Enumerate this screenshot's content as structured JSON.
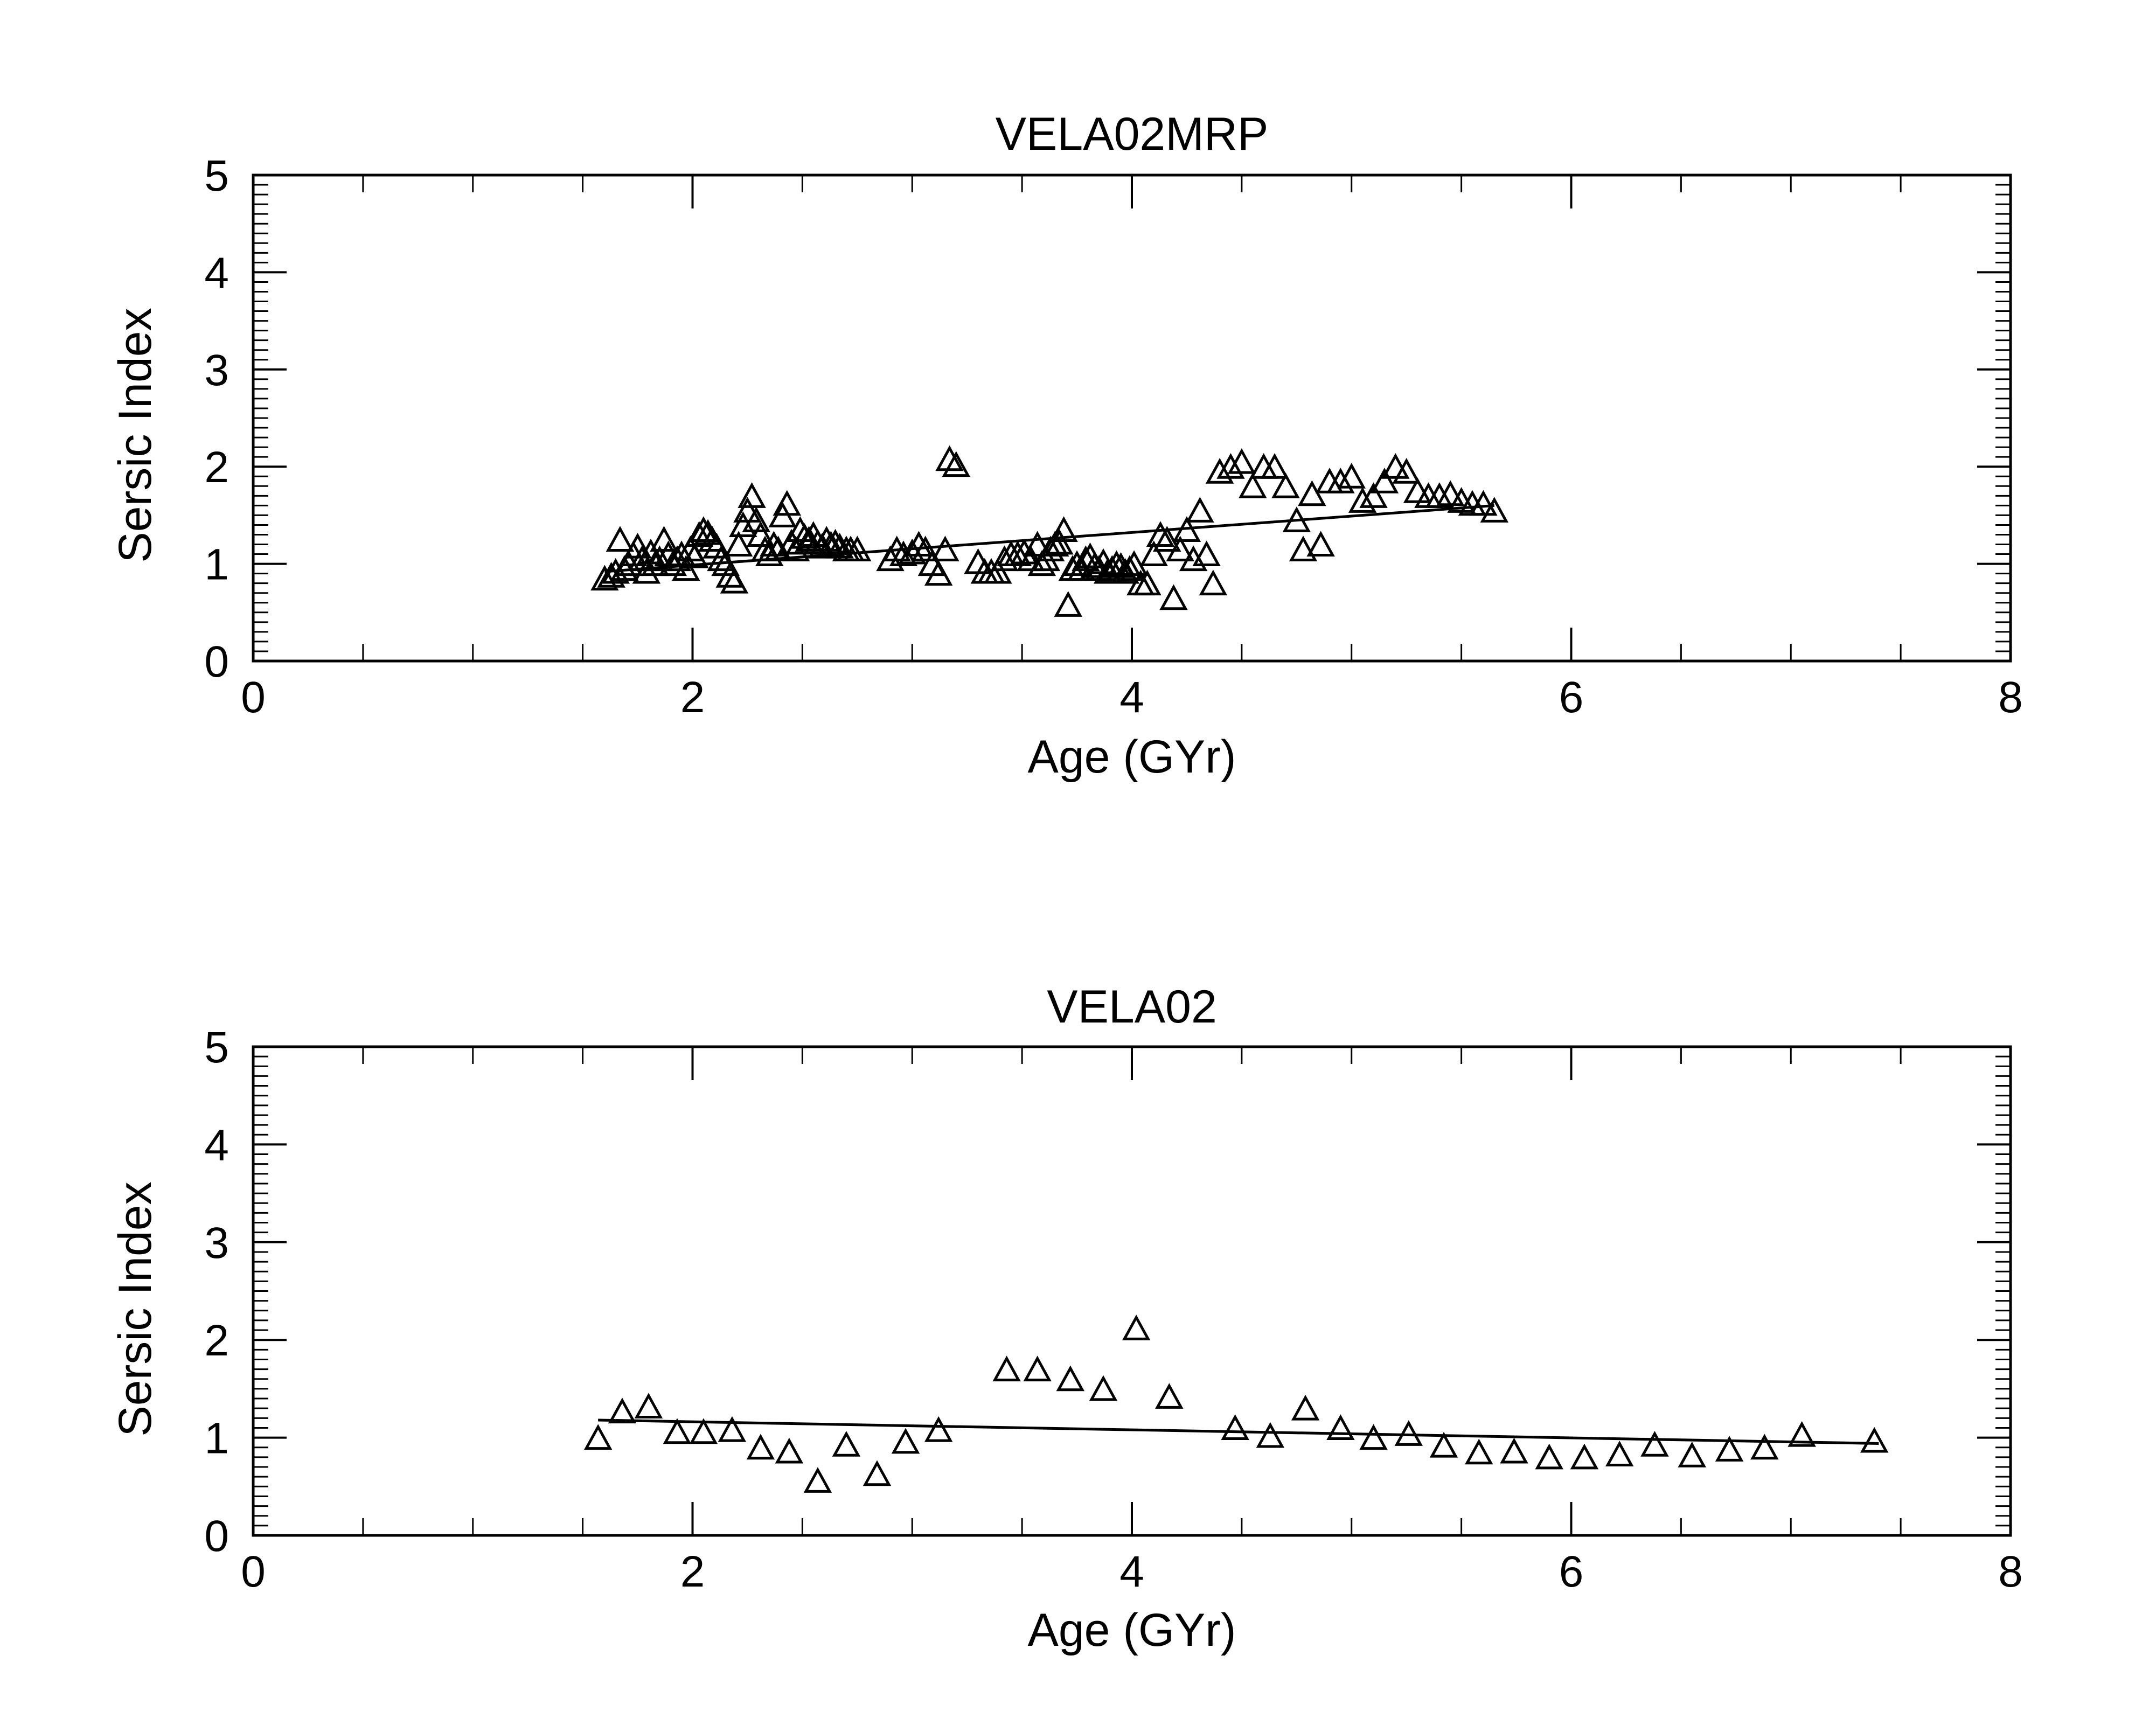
{
  "chart_data": [
    {
      "type": "scatter",
      "title": "VELA02MRP",
      "xlabel": "Age (GYr)",
      "ylabel": "Sersic Index",
      "xlim": [
        0,
        8
      ],
      "ylim": [
        0,
        5
      ],
      "xticks": [
        "0",
        "2",
        "4",
        "6",
        "8"
      ],
      "yticks": [
        "0",
        "1",
        "2",
        "3",
        "4",
        "5"
      ],
      "marker": "open-triangle",
      "fit_line": {
        "x": [
          1.6,
          5.65
        ],
        "y": [
          0.92,
          1.6
        ]
      },
      "points": [
        [
          1.6,
          0.85
        ],
        [
          1.63,
          0.88
        ],
        [
          1.65,
          0.92
        ],
        [
          1.67,
          1.25
        ],
        [
          1.69,
          0.95
        ],
        [
          1.71,
          1.0
        ],
        [
          1.73,
          1.1
        ],
        [
          1.75,
          1.18
        ],
        [
          1.77,
          1.05
        ],
        [
          1.79,
          0.92
        ],
        [
          1.81,
          1.12
        ],
        [
          1.83,
          1.0
        ],
        [
          1.85,
          1.05
        ],
        [
          1.87,
          1.25
        ],
        [
          1.89,
          1.1
        ],
        [
          1.91,
          1.0
        ],
        [
          1.93,
          1.05
        ],
        [
          1.95,
          1.1
        ],
        [
          1.97,
          0.95
        ],
        [
          1.99,
          1.15
        ],
        [
          2.01,
          1.08
        ],
        [
          2.03,
          1.3
        ],
        [
          2.05,
          1.35
        ],
        [
          2.07,
          1.32
        ],
        [
          2.09,
          1.25
        ],
        [
          2.11,
          1.18
        ],
        [
          2.13,
          1.05
        ],
        [
          2.15,
          1.0
        ],
        [
          2.17,
          0.88
        ],
        [
          2.19,
          0.82
        ],
        [
          2.21,
          1.2
        ],
        [
          2.23,
          1.4
        ],
        [
          2.25,
          1.55
        ],
        [
          2.27,
          1.7
        ],
        [
          2.29,
          1.45
        ],
        [
          2.31,
          1.3
        ],
        [
          2.33,
          1.15
        ],
        [
          2.35,
          1.1
        ],
        [
          2.37,
          1.2
        ],
        [
          2.39,
          1.15
        ],
        [
          2.41,
          1.5
        ],
        [
          2.43,
          1.62
        ],
        [
          2.45,
          1.22
        ],
        [
          2.47,
          1.15
        ],
        [
          2.49,
          1.35
        ],
        [
          2.51,
          1.28
        ],
        [
          2.53,
          1.25
        ],
        [
          2.55,
          1.3
        ],
        [
          2.57,
          1.22
        ],
        [
          2.59,
          1.18
        ],
        [
          2.61,
          1.25
        ],
        [
          2.63,
          1.2
        ],
        [
          2.65,
          1.22
        ],
        [
          2.67,
          1.18
        ],
        [
          2.7,
          1.15
        ],
        [
          2.72,
          1.15
        ],
        [
          2.75,
          1.15
        ],
        [
          2.9,
          1.05
        ],
        [
          2.93,
          1.15
        ],
        [
          2.96,
          1.1
        ],
        [
          3.0,
          1.12
        ],
        [
          3.03,
          1.2
        ],
        [
          3.06,
          1.15
        ],
        [
          3.09,
          1.0
        ],
        [
          3.12,
          0.9
        ],
        [
          3.15,
          1.15
        ],
        [
          3.17,
          2.08
        ],
        [
          3.2,
          2.02
        ],
        [
          3.3,
          1.02
        ],
        [
          3.33,
          0.92
        ],
        [
          3.36,
          0.92
        ],
        [
          3.39,
          0.92
        ],
        [
          3.42,
          1.05
        ],
        [
          3.45,
          1.1
        ],
        [
          3.48,
          1.1
        ],
        [
          3.51,
          1.12
        ],
        [
          3.54,
          1.05
        ],
        [
          3.57,
          1.2
        ],
        [
          3.59,
          1.0
        ],
        [
          3.61,
          1.05
        ],
        [
          3.63,
          1.15
        ],
        [
          3.65,
          1.2
        ],
        [
          3.67,
          1.22
        ],
        [
          3.69,
          1.35
        ],
        [
          3.71,
          0.58
        ],
        [
          3.73,
          0.95
        ],
        [
          3.75,
          1.0
        ],
        [
          3.77,
          0.95
        ],
        [
          3.79,
          1.05
        ],
        [
          3.81,
          1.08
        ],
        [
          3.83,
          0.98
        ],
        [
          3.85,
          0.95
        ],
        [
          3.87,
          1.02
        ],
        [
          3.89,
          0.92
        ],
        [
          3.91,
          0.95
        ],
        [
          3.93,
          1.0
        ],
        [
          3.95,
          0.98
        ],
        [
          3.97,
          0.92
        ],
        [
          3.99,
          0.95
        ],
        [
          4.01,
          1.0
        ],
        [
          4.04,
          0.8
        ],
        [
          4.07,
          0.8
        ],
        [
          4.1,
          1.1
        ],
        [
          4.13,
          1.3
        ],
        [
          4.16,
          1.25
        ],
        [
          4.19,
          0.65
        ],
        [
          4.22,
          1.15
        ],
        [
          4.25,
          1.35
        ],
        [
          4.28,
          1.05
        ],
        [
          4.31,
          1.55
        ],
        [
          4.34,
          1.1
        ],
        [
          4.37,
          0.8
        ],
        [
          4.4,
          1.95
        ],
        [
          4.45,
          2.0
        ],
        [
          4.5,
          2.05
        ],
        [
          4.55,
          1.8
        ],
        [
          4.6,
          2.0
        ],
        [
          4.65,
          2.0
        ],
        [
          4.7,
          1.8
        ],
        [
          4.75,
          1.45
        ],
        [
          4.78,
          1.15
        ],
        [
          4.82,
          1.72
        ],
        [
          4.86,
          1.2
        ],
        [
          4.9,
          1.85
        ],
        [
          4.95,
          1.85
        ],
        [
          5.0,
          1.9
        ],
        [
          5.05,
          1.65
        ],
        [
          5.1,
          1.7
        ],
        [
          5.15,
          1.85
        ],
        [
          5.2,
          2.0
        ],
        [
          5.25,
          1.95
        ],
        [
          5.3,
          1.75
        ],
        [
          5.35,
          1.7
        ],
        [
          5.4,
          1.7
        ],
        [
          5.45,
          1.72
        ],
        [
          5.5,
          1.65
        ],
        [
          5.55,
          1.62
        ],
        [
          5.6,
          1.62
        ],
        [
          5.65,
          1.55
        ]
      ]
    },
    {
      "type": "scatter",
      "title": "VELA02",
      "xlabel": "Age (GYr)",
      "ylabel": "Sersic Index",
      "xlim": [
        0,
        8
      ],
      "ylim": [
        0,
        5
      ],
      "xticks": [
        "0",
        "2",
        "4",
        "6",
        "8"
      ],
      "yticks": [
        "0",
        "1",
        "2",
        "3",
        "4",
        "5"
      ],
      "marker": "open-triangle",
      "fit_line": {
        "x": [
          1.57,
          7.4
        ],
        "y": [
          1.18,
          0.94
        ]
      },
      "points": [
        [
          1.57,
          1.0
        ],
        [
          1.68,
          1.27
        ],
        [
          1.8,
          1.32
        ],
        [
          1.93,
          1.06
        ],
        [
          2.05,
          1.06
        ],
        [
          2.18,
          1.08
        ],
        [
          2.31,
          0.9
        ],
        [
          2.44,
          0.86
        ],
        [
          2.57,
          0.56
        ],
        [
          2.7,
          0.93
        ],
        [
          2.84,
          0.63
        ],
        [
          2.97,
          0.96
        ],
        [
          3.12,
          1.08
        ],
        [
          3.43,
          1.7
        ],
        [
          3.57,
          1.7
        ],
        [
          3.72,
          1.6
        ],
        [
          3.87,
          1.5
        ],
        [
          4.02,
          2.12
        ],
        [
          4.17,
          1.42
        ],
        [
          4.47,
          1.1
        ],
        [
          4.63,
          1.02
        ],
        [
          4.79,
          1.3
        ],
        [
          4.95,
          1.1
        ],
        [
          5.1,
          1.0
        ],
        [
          5.26,
          1.04
        ],
        [
          5.42,
          0.92
        ],
        [
          5.58,
          0.85
        ],
        [
          5.74,
          0.86
        ],
        [
          5.9,
          0.8
        ],
        [
          6.06,
          0.8
        ],
        [
          6.22,
          0.83
        ],
        [
          6.38,
          0.93
        ],
        [
          6.55,
          0.82
        ],
        [
          6.72,
          0.88
        ],
        [
          6.88,
          0.9
        ],
        [
          7.05,
          1.03
        ],
        [
          7.38,
          0.97
        ]
      ]
    }
  ]
}
